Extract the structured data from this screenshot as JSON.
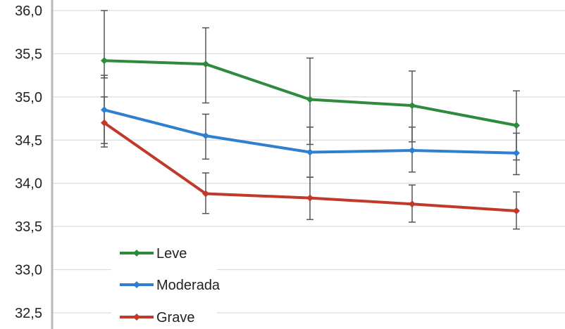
{
  "chart_data": {
    "type": "line",
    "x": [
      1,
      2,
      3,
      4,
      5
    ],
    "ylim": [
      32.3,
      36.0
    ],
    "ytick_values": [
      32.5,
      33.0,
      33.5,
      34.0,
      34.5,
      35.0,
      35.5,
      36.0
    ],
    "ytick_labels": [
      "32,5",
      "33,0",
      "33,5",
      "34,0",
      "34,5",
      "35,0",
      "35,5",
      "36,0"
    ],
    "grid": true,
    "legend_position": "bottom-left",
    "series": [
      {
        "name": "Leve",
        "color": "#2e8b3e",
        "values": [
          35.42,
          35.38,
          34.97,
          34.9,
          34.67
        ],
        "err_low": [
          35.22,
          34.93,
          34.45,
          34.48,
          34.27
        ],
        "err_high": [
          36.0,
          35.8,
          35.45,
          35.3,
          35.07
        ]
      },
      {
        "name": "Moderada",
        "color": "#2f7fd1",
        "values": [
          34.85,
          34.55,
          34.36,
          34.38,
          34.35
        ],
        "err_low": [
          34.42,
          34.28,
          34.07,
          34.13,
          34.1
        ],
        "err_high": [
          35.25,
          34.8,
          34.65,
          34.65,
          34.58
        ]
      },
      {
        "name": "Grave",
        "color": "#c0392b",
        "values": [
          34.7,
          33.88,
          33.83,
          33.76,
          33.68
        ],
        "err_low": [
          34.46,
          33.65,
          33.58,
          33.55,
          33.47
        ],
        "err_high": [
          35.0,
          34.12,
          34.07,
          33.98,
          33.9
        ]
      }
    ]
  }
}
